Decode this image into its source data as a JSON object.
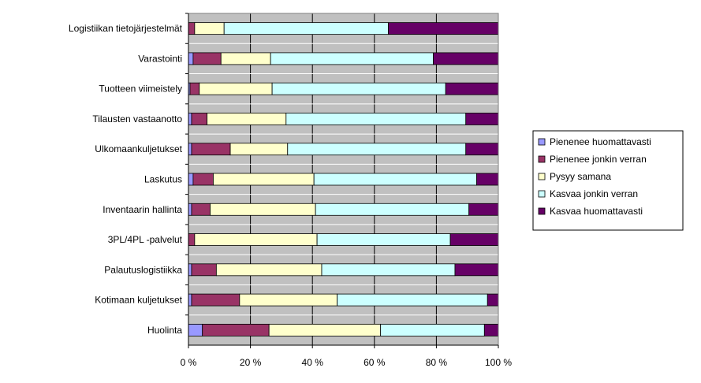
{
  "chart_data": {
    "type": "bar",
    "orientation": "horizontal",
    "stacked": "percent",
    "categories": [
      "Logistiikan tietojärjestelmät",
      "Varastointi",
      "Tuotteen viimeistely",
      "Tilausten vastaanotto",
      "Ulkomaankuljetukset",
      "Laskutus",
      "Inventaarin hallinta",
      "3PL/4PL -palvelut",
      "Palautuslogistiikka",
      "Kotimaan kuljetukset",
      "Huolinta"
    ],
    "series": [
      {
        "name": "Pienenee huomattavasti",
        "color": "#9999FF",
        "values": [
          0.0,
          1.5,
          0.5,
          1.0,
          1.0,
          1.5,
          1.0,
          0.0,
          1.0,
          1.0,
          4.5
        ]
      },
      {
        "name": "Pienenee jonkin verran",
        "color": "#993366",
        "values": [
          2.0,
          9.0,
          3.0,
          5.0,
          12.5,
          6.5,
          6.0,
          2.0,
          8.0,
          15.5,
          21.5
        ]
      },
      {
        "name": "Pysyy samana",
        "color": "#FFFFCC",
        "values": [
          9.5,
          16.0,
          23.5,
          25.5,
          18.5,
          32.5,
          34.0,
          39.5,
          34.0,
          31.5,
          36.0
        ]
      },
      {
        "name": "Kasvaa jonkin verran",
        "color": "#CCFFFF",
        "values": [
          53.0,
          52.5,
          56.0,
          58.0,
          57.5,
          52.5,
          49.5,
          43.0,
          43.0,
          48.5,
          33.5
        ]
      },
      {
        "name": "Kasvaa huomattavasti",
        "color": "#660066",
        "values": [
          35.5,
          21.0,
          17.0,
          10.5,
          10.5,
          7.0,
          9.5,
          15.5,
          14.0,
          3.5,
          4.5
        ]
      }
    ],
    "x_ticks": [
      "0 %",
      "20 %",
      "40 %",
      "60 %",
      "80 %",
      "100 %"
    ],
    "xlim": [
      0,
      100
    ],
    "title": "",
    "xlabel": "",
    "ylabel": "",
    "grid": true,
    "legend": "right",
    "plot_background": "#C0C0C0"
  }
}
